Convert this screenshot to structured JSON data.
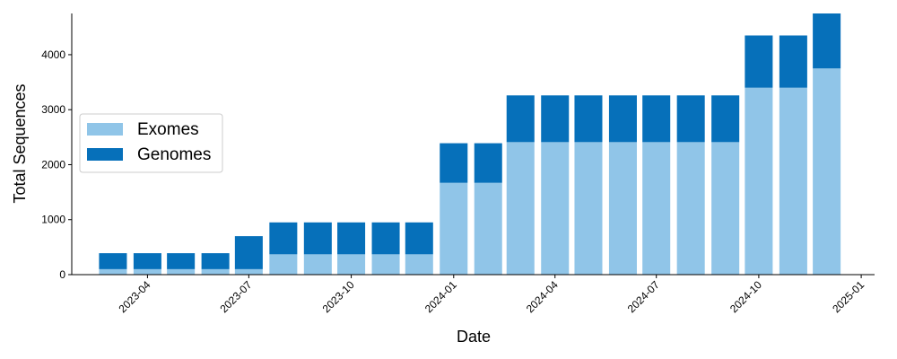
{
  "chart_data": {
    "type": "bar",
    "stacked": true,
    "title": "",
    "xlabel": "Date",
    "ylabel": "Total Sequences",
    "ylim": [
      0,
      4750
    ],
    "xlim": [
      "2023-01-23",
      "2025-01-13"
    ],
    "yticks": [
      0,
      1000,
      2000,
      3000,
      4000
    ],
    "xticks": [
      "2023-04",
      "2023-07",
      "2023-10",
      "2024-01",
      "2024-04",
      "2024-07",
      "2024-10",
      "2025-01"
    ],
    "grid": false,
    "legend_position": "center-left",
    "categories": [
      "2023-03-01",
      "2023-04-01",
      "2023-05-01",
      "2023-06-01",
      "2023-07-01",
      "2023-08-01",
      "2023-09-01",
      "2023-10-01",
      "2023-11-01",
      "2023-12-01",
      "2024-01-01",
      "2024-02-01",
      "2024-03-01",
      "2024-04-01",
      "2024-05-01",
      "2024-06-01",
      "2024-07-01",
      "2024-08-01",
      "2024-09-01",
      "2024-10-01",
      "2024-11-01",
      "2024-12-01"
    ],
    "series": [
      {
        "name": "Exomes",
        "color": "#90c5e8",
        "values": [
          100,
          100,
          100,
          100,
          100,
          370,
          370,
          370,
          370,
          370,
          1670,
          1670,
          2410,
          2410,
          2410,
          2410,
          2410,
          2410,
          2410,
          3400,
          3400,
          3750
        ]
      },
      {
        "name": "Genomes",
        "color": "#0670ba",
        "values": [
          290,
          290,
          290,
          290,
          600,
          580,
          580,
          580,
          580,
          580,
          720,
          720,
          850,
          850,
          850,
          850,
          850,
          850,
          850,
          950,
          950,
          1000
        ]
      }
    ]
  }
}
